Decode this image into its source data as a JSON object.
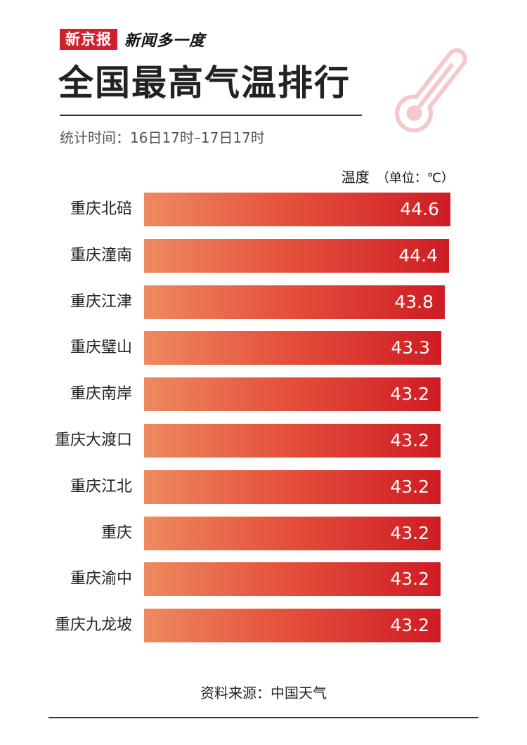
{
  "brand": {
    "logo": "新京报",
    "column": "新闻多一度"
  },
  "header": {
    "title": "全国最高气温排行",
    "stat_period": "统计时间：16日17时–17日17时"
  },
  "unit_label": {
    "metric": "温度",
    "unit": "（单位：℃）"
  },
  "icon": "thermometer-icon",
  "colors": {
    "brand_red": "#d1202e",
    "bar_start": "#ee8a60",
    "bar_end": "#cf1c24"
  },
  "chart_data": {
    "type": "bar",
    "orientation": "horizontal",
    "categories": [
      "重庆北碚",
      "重庆潼南",
      "重庆江津",
      "重庆璧山",
      "重庆南岸",
      "重庆大渡口",
      "重庆江北",
      "重庆",
      "重庆渝中",
      "重庆九龙坡"
    ],
    "values": [
      "44.6",
      "44.4",
      "43.8",
      "43.3",
      "43.2",
      "43.2",
      "43.2",
      "43.2",
      "43.2",
      "43.2"
    ],
    "ylabel": "温度",
    "unit": "℃",
    "grid": false,
    "legend": "none"
  },
  "footer": {
    "source": "资料来源：中国天气"
  }
}
